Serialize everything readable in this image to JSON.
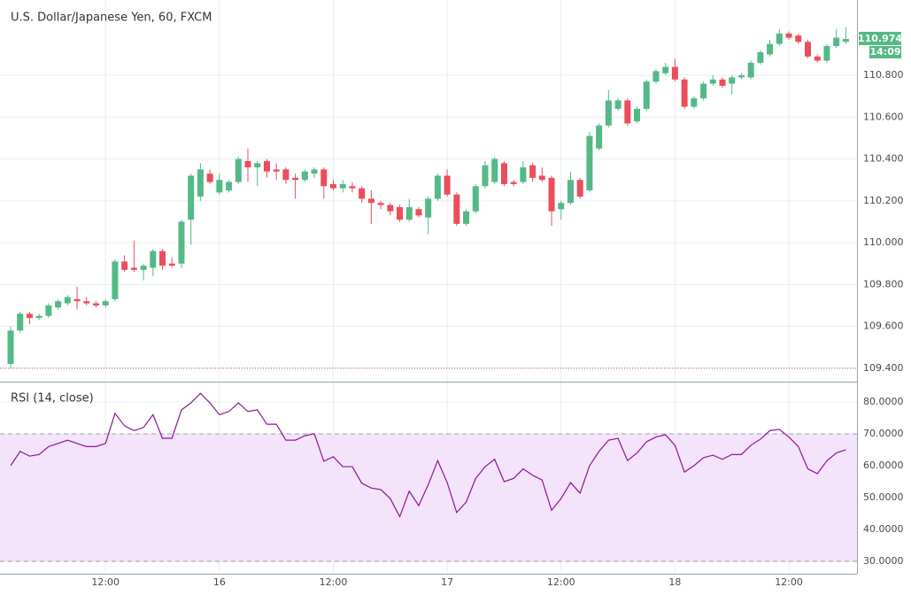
{
  "chart_data": [
    {
      "type": "candlestick",
      "title": "U.S. Dollar/Japanese Yen, 60, FXCM",
      "up_color": "#53b987",
      "down_color": "#eb4d5c",
      "open": [
        109.42,
        109.58,
        109.66,
        109.64,
        109.65,
        109.69,
        109.71,
        109.73,
        109.72,
        109.71,
        109.7,
        109.73,
        109.91,
        109.88,
        109.87,
        109.88,
        109.96,
        109.9,
        109.9,
        110.11,
        110.22,
        110.33,
        110.24,
        110.25,
        110.29,
        110.39,
        110.36,
        110.39,
        110.35,
        110.35,
        110.31,
        110.3,
        110.33,
        110.35,
        110.28,
        110.26,
        110.27,
        110.26,
        110.21,
        110.19,
        110.18,
        110.17,
        110.11,
        110.16,
        110.12,
        110.21,
        110.32,
        110.23,
        110.09,
        110.15,
        110.27,
        110.29,
        110.38,
        110.29,
        110.29,
        110.37,
        110.32,
        110.31,
        110.16,
        110.19,
        110.3,
        110.25,
        110.45,
        110.56,
        110.64,
        110.68,
        110.58,
        110.64,
        110.77,
        110.81,
        110.84,
        110.78,
        110.65,
        110.69,
        110.76,
        110.78,
        110.76,
        110.79,
        110.79,
        110.86,
        110.9,
        110.95,
        111.0,
        110.99,
        110.96,
        110.89,
        110.87,
        110.94,
        110.96
      ],
      "high": [
        109.6,
        109.67,
        109.67,
        109.66,
        109.71,
        109.73,
        109.75,
        109.79,
        109.74,
        109.72,
        109.73,
        109.92,
        109.94,
        110.01,
        109.9,
        109.97,
        109.97,
        109.93,
        110.11,
        110.33,
        110.38,
        110.35,
        110.33,
        110.3,
        110.41,
        110.45,
        110.39,
        110.4,
        110.38,
        110.36,
        110.33,
        110.35,
        110.36,
        110.36,
        110.3,
        110.3,
        110.29,
        110.27,
        110.25,
        110.2,
        110.19,
        110.18,
        110.21,
        110.17,
        110.22,
        110.33,
        110.35,
        110.24,
        110.16,
        110.28,
        110.39,
        110.41,
        110.39,
        110.3,
        110.39,
        110.38,
        110.36,
        110.32,
        110.2,
        110.34,
        110.31,
        110.53,
        110.57,
        110.73,
        110.69,
        110.69,
        110.65,
        110.78,
        110.83,
        110.86,
        110.88,
        110.79,
        110.7,
        110.77,
        110.8,
        110.79,
        110.8,
        110.81,
        110.87,
        110.92,
        110.97,
        111.02,
        111.01,
        111.0,
        110.97,
        110.9,
        110.95,
        111.02,
        111.03
      ],
      "low": [
        109.4,
        109.57,
        109.61,
        109.63,
        109.64,
        109.68,
        109.7,
        109.68,
        109.7,
        109.69,
        109.69,
        109.72,
        109.86,
        109.86,
        109.82,
        109.84,
        109.87,
        109.88,
        109.88,
        109.99,
        110.2,
        110.28,
        110.23,
        110.24,
        110.28,
        110.29,
        110.27,
        110.31,
        110.3,
        110.28,
        110.21,
        110.29,
        110.31,
        110.21,
        110.25,
        110.24,
        110.24,
        110.19,
        110.09,
        110.16,
        110.13,
        110.1,
        110.1,
        110.12,
        110.04,
        110.2,
        110.22,
        110.08,
        110.08,
        110.14,
        110.26,
        110.28,
        110.27,
        110.27,
        110.28,
        110.29,
        110.29,
        110.08,
        110.11,
        110.18,
        110.21,
        110.24,
        110.44,
        110.55,
        110.63,
        110.56,
        110.57,
        110.63,
        110.76,
        110.8,
        110.77,
        110.64,
        110.64,
        110.68,
        110.75,
        110.74,
        110.71,
        110.78,
        110.78,
        110.85,
        110.89,
        110.94,
        110.97,
        110.95,
        110.88,
        110.86,
        110.86,
        110.93,
        110.95
      ],
      "close": [
        109.58,
        109.66,
        109.64,
        109.65,
        109.7,
        109.72,
        109.74,
        109.72,
        109.71,
        109.7,
        109.72,
        109.91,
        109.87,
        109.87,
        109.89,
        109.96,
        109.89,
        109.89,
        110.1,
        110.32,
        110.35,
        110.29,
        110.3,
        110.29,
        110.4,
        110.36,
        110.38,
        110.34,
        110.34,
        110.3,
        110.3,
        110.34,
        110.35,
        110.27,
        110.26,
        110.28,
        110.26,
        110.21,
        110.19,
        110.18,
        110.15,
        110.11,
        110.17,
        110.13,
        110.21,
        110.32,
        110.23,
        110.09,
        110.15,
        110.27,
        110.37,
        110.4,
        110.28,
        110.28,
        110.36,
        110.31,
        110.3,
        110.15,
        110.19,
        110.3,
        110.22,
        110.51,
        110.56,
        110.68,
        110.68,
        110.57,
        110.64,
        110.77,
        110.82,
        110.84,
        110.78,
        110.65,
        110.69,
        110.76,
        110.78,
        110.75,
        110.79,
        110.8,
        110.86,
        110.91,
        110.95,
        111.0,
        110.98,
        110.96,
        110.89,
        110.87,
        110.94,
        110.98,
        110.974
      ],
      "ylim": [
        109.34,
        111.16
      ],
      "yticks": [
        {
          "value": 109.4,
          "label": "109.400"
        },
        {
          "value": 109.6,
          "label": "109.600"
        },
        {
          "value": 109.8,
          "label": "109.800"
        },
        {
          "value": 110.0,
          "label": "110.000"
        },
        {
          "value": 110.2,
          "label": "110.200"
        },
        {
          "value": 110.4,
          "label": "110.400"
        },
        {
          "value": 110.6,
          "label": "110.600"
        },
        {
          "value": 110.8,
          "label": "110.800"
        }
      ],
      "hline": 109.4,
      "hline_color": "#e53935",
      "last_price": 110.974,
      "timer": "14:09",
      "xticks": [
        {
          "value": 10,
          "label": "12:00"
        },
        {
          "value": 22,
          "label": "16"
        },
        {
          "value": 34,
          "label": "12:00"
        },
        {
          "value": 46,
          "label": "17"
        },
        {
          "value": 58,
          "label": "12:00"
        },
        {
          "value": 70,
          "label": "18"
        },
        {
          "value": 82,
          "label": "12:00"
        }
      ],
      "grid": true
    },
    {
      "type": "line",
      "title": "RSI (14, close)",
      "color": "#8e1599",
      "values": [
        60,
        64.5,
        63,
        63.5,
        66,
        67,
        68,
        67,
        66,
        66,
        67,
        76.4,
        72.5,
        71,
        72,
        76,
        68.6,
        68.6,
        77.5,
        79.7,
        82.7,
        79.7,
        76,
        77,
        79.7,
        77,
        77.5,
        73,
        73,
        68,
        68,
        69.4,
        70,
        61.4,
        62.8,
        59.7,
        59.7,
        54.5,
        53,
        52.5,
        49.7,
        44,
        52,
        47.5,
        54,
        61.6,
        54.7,
        45.3,
        48.6,
        56,
        59.7,
        62,
        55,
        56,
        59,
        57,
        55.5,
        46,
        49.7,
        54.7,
        51.4,
        60,
        64.5,
        68,
        68.6,
        61.6,
        64,
        67.5,
        69,
        69.7,
        66.4,
        58,
        60,
        62.5,
        63.3,
        62,
        63.5,
        63.5,
        66.4,
        68.3,
        71,
        71.4,
        69,
        66,
        59,
        57.5,
        61.5,
        64,
        65
      ],
      "band": [
        30,
        70
      ],
      "band_color": "#f3e3fb",
      "ylim": [
        26.1,
        86.1
      ],
      "yticks": [
        {
          "value": 30,
          "label": "30.0000"
        },
        {
          "value": 40,
          "label": "40.0000"
        },
        {
          "value": 50,
          "label": "50.0000"
        },
        {
          "value": 60,
          "label": "60.0000"
        },
        {
          "value": 70,
          "label": "70.0000"
        },
        {
          "value": 80,
          "label": "80.0000"
        }
      ],
      "grid": true
    }
  ]
}
